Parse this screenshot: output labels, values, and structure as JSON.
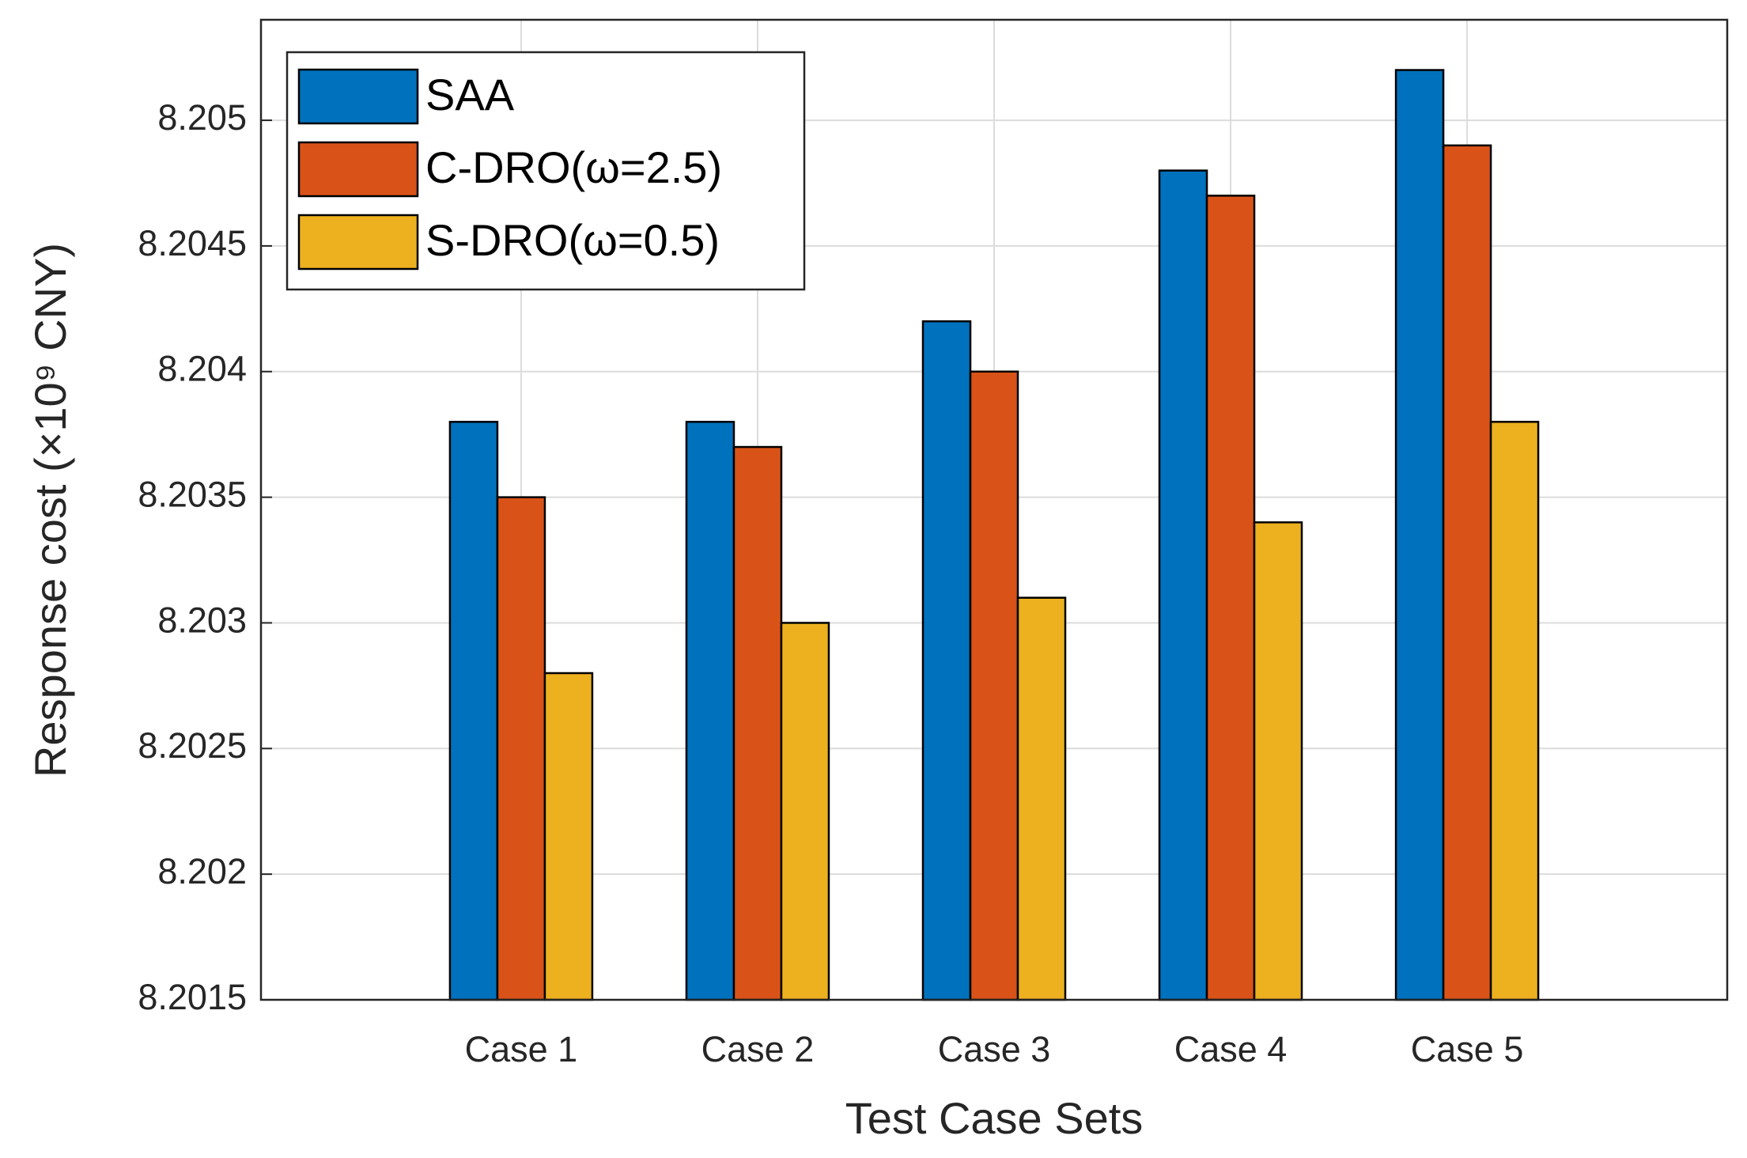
{
  "chart_data": {
    "type": "bar",
    "x_label": "Test Case Sets",
    "y_label": "Response cost (×10⁹ CNY)",
    "categories": [
      "Case 1",
      "Case 2",
      "Case 3",
      "Case 4",
      "Case 5"
    ],
    "series": [
      {
        "name": "SAA",
        "color": "#0072bd",
        "values": [
          8.2038,
          8.2038,
          8.2042,
          8.2048,
          8.2052
        ]
      },
      {
        "name": "C-DRO(ω=2.5)",
        "color": "#d95319",
        "values": [
          8.2035,
          8.2037,
          8.204,
          8.2047,
          8.2049
        ]
      },
      {
        "name": "S-DRO(ω=0.5)",
        "color": "#edb120",
        "values": [
          8.2028,
          8.203,
          8.2031,
          8.2034,
          8.2038
        ]
      }
    ],
    "ylim": [
      8.2015,
      8.2054
    ],
    "yticks": [
      8.2015,
      8.202,
      8.2025,
      8.203,
      8.2035,
      8.204,
      8.2045,
      8.205
    ],
    "grid": true,
    "legend": "upper left"
  }
}
